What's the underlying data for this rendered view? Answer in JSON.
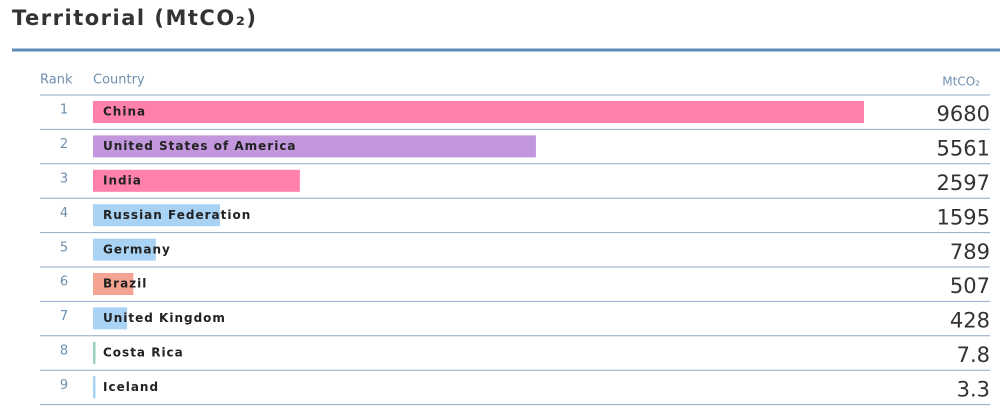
{
  "chart_data": {
    "type": "bar",
    "orientation": "horizontal",
    "title": "Territorial (MtCO₂)",
    "columns": {
      "rank": "Rank",
      "country": "Country",
      "value": "MtCO₂"
    },
    "ranks": [
      1,
      2,
      3,
      4,
      5,
      6,
      7,
      8,
      9
    ],
    "categories": [
      "China",
      "United States of America",
      "India",
      "Russian Federation",
      "Germany",
      "Brazil",
      "United Kingdom",
      "Costa Rica",
      "Iceland"
    ],
    "values": [
      9680,
      5561,
      2597,
      1595,
      789,
      507,
      428,
      7.8,
      3.3
    ],
    "colors": [
      "#ff80ab",
      "#c397dd",
      "#ff80ab",
      "#a9d3f5",
      "#a9d3f5",
      "#f5a491",
      "#a9d3f5",
      "#9ccfbd",
      "#a9d3f5"
    ]
  }
}
